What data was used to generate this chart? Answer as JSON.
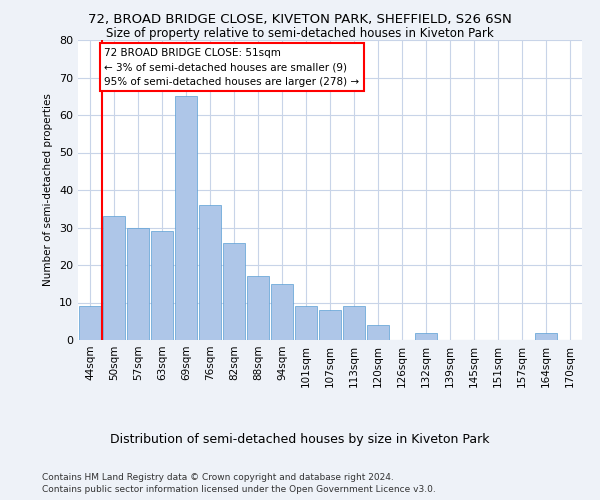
{
  "title1": "72, BROAD BRIDGE CLOSE, KIVETON PARK, SHEFFIELD, S26 6SN",
  "title2": "Size of property relative to semi-detached houses in Kiveton Park",
  "xlabel": "Distribution of semi-detached houses by size in Kiveton Park",
  "ylabel": "Number of semi-detached properties",
  "footer1": "Contains HM Land Registry data © Crown copyright and database right 2024.",
  "footer2": "Contains public sector information licensed under the Open Government Licence v3.0.",
  "categories": [
    "44sqm",
    "50sqm",
    "57sqm",
    "63sqm",
    "69sqm",
    "76sqm",
    "82sqm",
    "88sqm",
    "94sqm",
    "101sqm",
    "107sqm",
    "113sqm",
    "120sqm",
    "126sqm",
    "132sqm",
    "139sqm",
    "145sqm",
    "151sqm",
    "157sqm",
    "164sqm",
    "170sqm"
  ],
  "values": [
    9,
    33,
    30,
    29,
    65,
    36,
    26,
    17,
    15,
    9,
    8,
    9,
    4,
    0,
    2,
    0,
    0,
    0,
    0,
    2,
    0
  ],
  "bar_color": "#aec6e8",
  "bar_edge_color": "#5a9fd4",
  "annotation_text": "72 BROAD BRIDGE CLOSE: 51sqm\n← 3% of semi-detached houses are smaller (9)\n95% of semi-detached houses are larger (278) →",
  "annotation_box_color": "white",
  "annotation_box_edge": "red",
  "vline_color": "red",
  "ylim": [
    0,
    80
  ],
  "yticks": [
    0,
    10,
    20,
    30,
    40,
    50,
    60,
    70,
    80
  ],
  "bg_color": "#eef2f8",
  "plot_bg_color": "white",
  "grid_color": "#c8d4e8"
}
